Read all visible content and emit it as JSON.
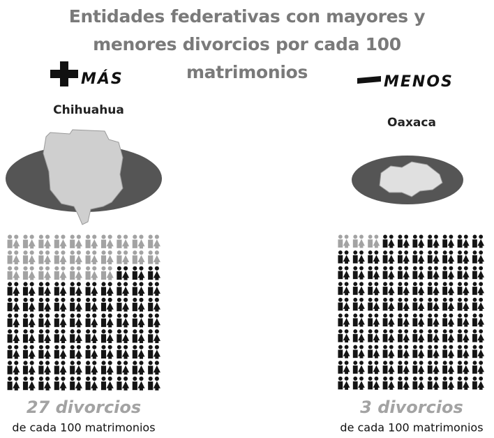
{
  "chart_data": {
    "type": "pictogram",
    "title": "Entidades federativas con mayores y menores divorcios por cada 100 matrimonios",
    "headers": [
      "MÁS",
      "MENOS"
    ],
    "categories": [
      "Chihuahua",
      "Oaxaca"
    ],
    "values": [
      27,
      3
    ],
    "value_labels": [
      "27 divorcios",
      "3 divorcios"
    ],
    "unit_labels": [
      "de cada 100 matrimonios",
      "de cada 100 matrimonios"
    ],
    "total": 100,
    "colors": {
      "highlight": "#a3a3a3",
      "rest": "#141414"
    }
  }
}
